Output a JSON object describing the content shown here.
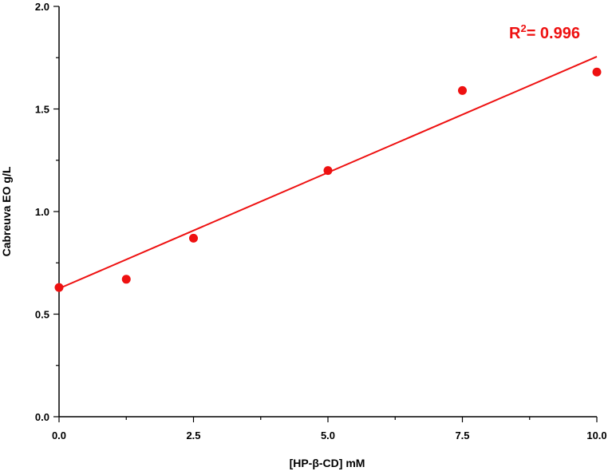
{
  "chart_data": {
    "type": "scatter",
    "title": "",
    "xlabel": "[HP-β-CD] mM",
    "ylabel": "Cabreuva EO g/L",
    "xlim": [
      0,
      10
    ],
    "ylim": [
      0,
      2
    ],
    "x_ticks": [
      "0.0",
      "2.5",
      "5.0",
      "7.5",
      "10.0"
    ],
    "y_ticks": [
      "0.0",
      "0.5",
      "1.0",
      "1.5",
      "2.0"
    ],
    "grid": false,
    "legend": "none",
    "color": "#ee1111",
    "series": [
      {
        "x": [
          0,
          1.25,
          2.5,
          5.0,
          7.5,
          10.0
        ],
        "y": [
          0.63,
          0.67,
          0.87,
          1.2,
          1.59,
          1.68
        ]
      }
    ],
    "fit_line": {
      "y_at_x0": 0.625,
      "y_at_x10": 1.755
    },
    "annotation": {
      "r2_prefix": "R",
      "r2_superscript": "2",
      "r2_value": "= 0.996"
    }
  }
}
